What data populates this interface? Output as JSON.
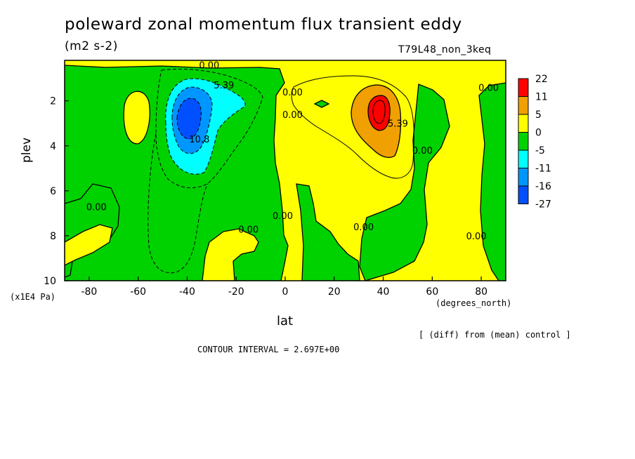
{
  "header": {
    "title": "poleward zonal momentum flux transient eddy",
    "units": "(m2 s-2)",
    "run": "T79L48_non_3keq"
  },
  "footer": {
    "note": "[ (diff) from (mean) control ]",
    "contour_interval": "CONTOUR INTERVAL = 2.697E+00"
  },
  "chart_data": {
    "type": "heatmap",
    "xlabel": "lat",
    "xunit": "(degrees_north)",
    "ylabel": "plev",
    "yunit": "(x1E4 Pa)",
    "xlim": [
      -90,
      90
    ],
    "ylim": [
      10,
      0.2
    ],
    "x_ticks": [
      -80,
      -60,
      -40,
      -20,
      0,
      20,
      40,
      60,
      80
    ],
    "y_ticks": [
      2,
      4,
      6,
      8,
      10
    ],
    "grid": false,
    "legend_position": "right",
    "colorbar": {
      "labels": [
        "22",
        "11",
        "5",
        "0",
        "-5",
        "-11",
        "-16",
        "-27"
      ],
      "colors": [
        "#ff0000",
        "#f0a000",
        "#ffff00",
        "#00d200",
        "#00ffff",
        "#0096ff",
        "#0050ff"
      ]
    },
    "contour_labels": [
      {
        "text": "0.00",
        "x": -31,
        "y": 0.4
      },
      {
        "text": "5.39",
        "x": -25,
        "y": 1.3
      },
      {
        "text": "10.8",
        "x": -35,
        "y": 3.7
      },
      {
        "text": "0.00",
        "x": 3,
        "y": 1.6
      },
      {
        "text": "0.00",
        "x": 3,
        "y": 2.6
      },
      {
        "text": "5.39",
        "x": 46,
        "y": 3.0
      },
      {
        "text": "0.00",
        "x": 56,
        "y": 4.2
      },
      {
        "text": "0.00",
        "x": 83,
        "y": 1.4
      },
      {
        "text": "0.00",
        "x": -77,
        "y": 6.7
      },
      {
        "text": "0.00",
        "x": -15,
        "y": 7.7
      },
      {
        "text": "0.00",
        "x": -1,
        "y": 7.1
      },
      {
        "text": "0.00",
        "x": 32,
        "y": 7.6
      },
      {
        "text": "0.00",
        "x": 78,
        "y": 8.0
      }
    ],
    "features": [
      {
        "kind": "negative_center",
        "lat": -40,
        "plev": 2.7,
        "peak": -27
      },
      {
        "kind": "positive_center",
        "lat": 37,
        "plev": 2.5,
        "peak": 22
      }
    ]
  }
}
